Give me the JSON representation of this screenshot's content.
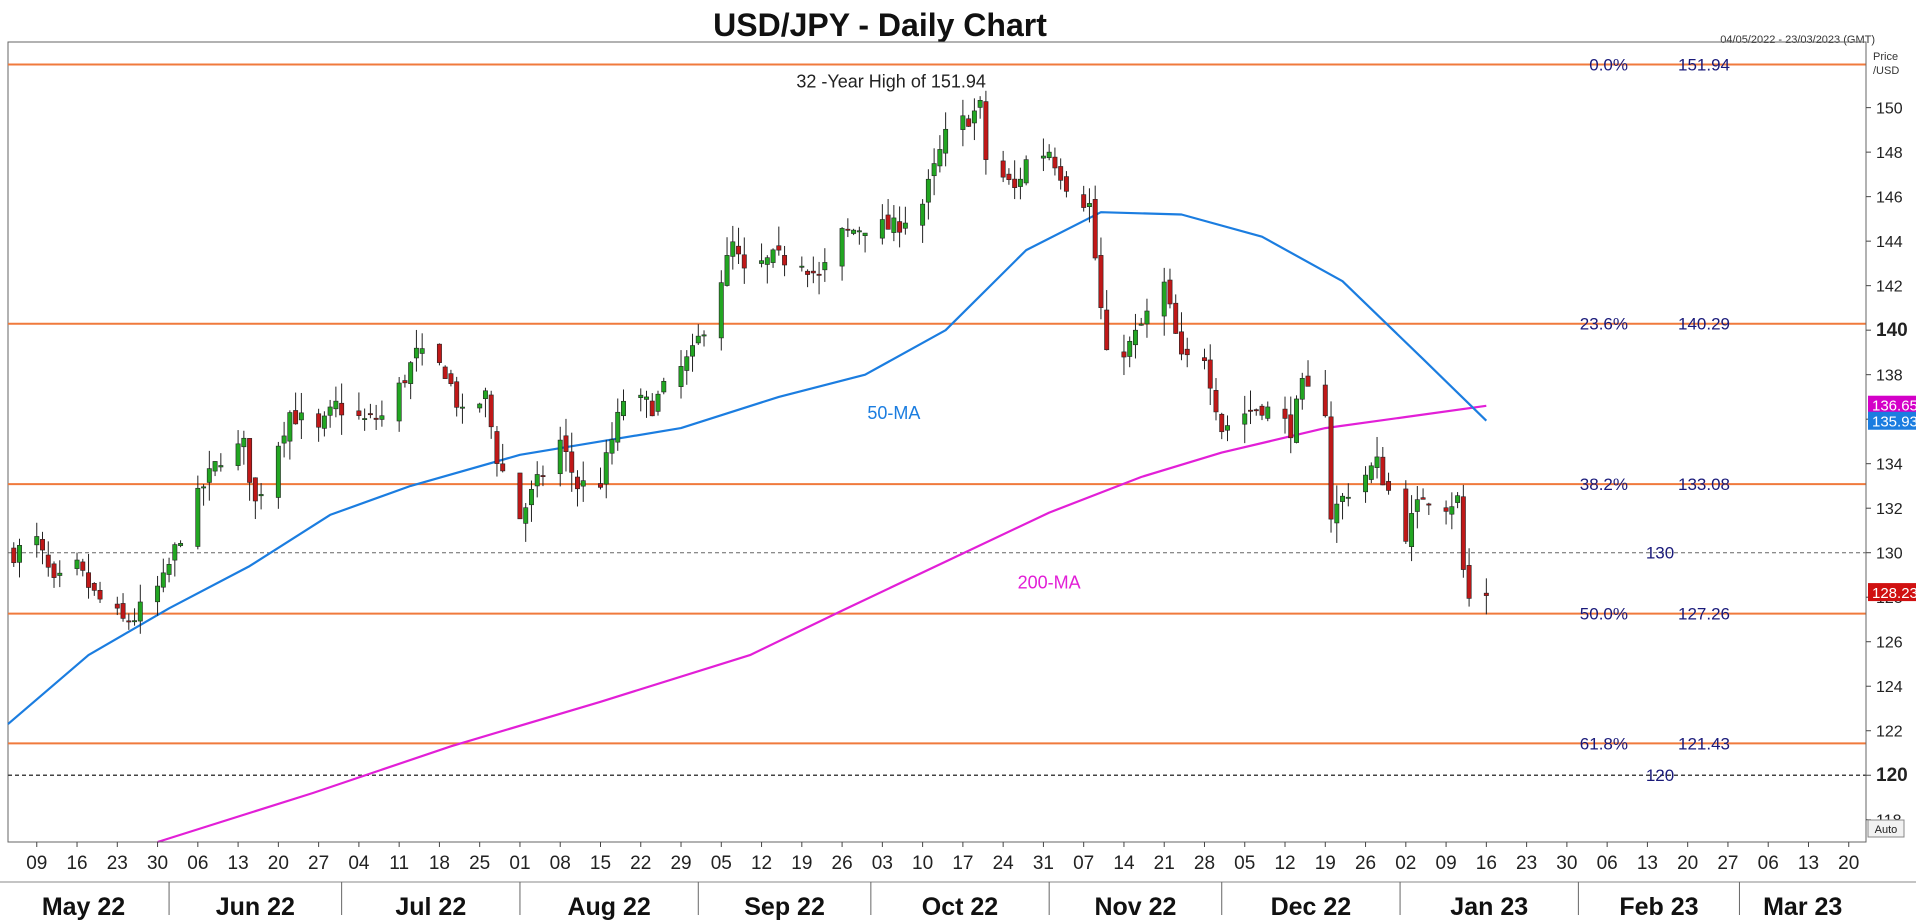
{
  "title": "USD/JPY - Daily Chart",
  "date_range": "04/05/2022 - 23/03/2023 (GMT)",
  "axis_header": [
    "Price",
    "/USD"
  ],
  "auto_label": "Auto",
  "chart_data": {
    "type": "candlestick",
    "y_axis": {
      "range": [
        117,
        152.5
      ],
      "ticks": [
        "118",
        "120",
        "122",
        "124",
        "126",
        "128",
        "130",
        "132",
        "134",
        "136",
        "138",
        "140",
        "142",
        "144",
        "146",
        "148",
        "150"
      ],
      "bold_ticks": [
        "120",
        "140"
      ],
      "grid": false
    },
    "x_axis": {
      "start": "2022-05-04",
      "end": "2023-03-23",
      "day_ticks": [
        {
          "date": "2022-05-09",
          "label": "09"
        },
        {
          "date": "2022-05-16",
          "label": "16"
        },
        {
          "date": "2022-05-23",
          "label": "23"
        },
        {
          "date": "2022-05-30",
          "label": "30"
        },
        {
          "date": "2022-06-06",
          "label": "06"
        },
        {
          "date": "2022-06-13",
          "label": "13"
        },
        {
          "date": "2022-06-20",
          "label": "20"
        },
        {
          "date": "2022-06-27",
          "label": "27"
        },
        {
          "date": "2022-07-04",
          "label": "04"
        },
        {
          "date": "2022-07-11",
          "label": "11"
        },
        {
          "date": "2022-07-18",
          "label": "18"
        },
        {
          "date": "2022-07-25",
          "label": "25"
        },
        {
          "date": "2022-08-01",
          "label": "01"
        },
        {
          "date": "2022-08-08",
          "label": "08"
        },
        {
          "date": "2022-08-15",
          "label": "15"
        },
        {
          "date": "2022-08-22",
          "label": "22"
        },
        {
          "date": "2022-08-29",
          "label": "29"
        },
        {
          "date": "2022-09-05",
          "label": "05"
        },
        {
          "date": "2022-09-12",
          "label": "12"
        },
        {
          "date": "2022-09-19",
          "label": "19"
        },
        {
          "date": "2022-09-26",
          "label": "26"
        },
        {
          "date": "2022-10-03",
          "label": "03"
        },
        {
          "date": "2022-10-10",
          "label": "10"
        },
        {
          "date": "2022-10-17",
          "label": "17"
        },
        {
          "date": "2022-10-24",
          "label": "24"
        },
        {
          "date": "2022-10-31",
          "label": "31"
        },
        {
          "date": "2022-11-07",
          "label": "07"
        },
        {
          "date": "2022-11-14",
          "label": "14"
        },
        {
          "date": "2022-11-21",
          "label": "21"
        },
        {
          "date": "2022-11-28",
          "label": "28"
        },
        {
          "date": "2022-12-05",
          "label": "05"
        },
        {
          "date": "2022-12-12",
          "label": "12"
        },
        {
          "date": "2022-12-19",
          "label": "19"
        },
        {
          "date": "2022-12-26",
          "label": "26"
        },
        {
          "date": "2023-01-02",
          "label": "02"
        },
        {
          "date": "2023-01-09",
          "label": "09"
        },
        {
          "date": "2023-01-16",
          "label": "16"
        },
        {
          "date": "2023-01-23",
          "label": "23"
        },
        {
          "date": "2023-01-30",
          "label": "30"
        },
        {
          "date": "2023-02-06",
          "label": "06"
        },
        {
          "date": "2023-02-13",
          "label": "13"
        },
        {
          "date": "2023-02-20",
          "label": "20"
        },
        {
          "date": "2023-02-27",
          "label": "27"
        },
        {
          "date": "2023-03-06",
          "label": "06"
        },
        {
          "date": "2023-03-13",
          "label": "13"
        },
        {
          "date": "2023-03-20",
          "label": "20"
        }
      ],
      "months": [
        {
          "label": "May 22",
          "start": "2022-05-04",
          "end": "2022-06-01"
        },
        {
          "label": "Jun 22",
          "start": "2022-06-01",
          "end": "2022-07-01"
        },
        {
          "label": "Jul 22",
          "start": "2022-07-01",
          "end": "2022-08-01"
        },
        {
          "label": "Aug 22",
          "start": "2022-08-01",
          "end": "2022-09-01"
        },
        {
          "label": "Sep 22",
          "start": "2022-09-01",
          "end": "2022-10-01"
        },
        {
          "label": "Oct 22",
          "start": "2022-10-01",
          "end": "2022-11-01"
        },
        {
          "label": "Nov 22",
          "start": "2022-11-01",
          "end": "2022-12-01"
        },
        {
          "label": "Dec 22",
          "start": "2022-12-01",
          "end": "2023-01-01"
        },
        {
          "label": "Jan 23",
          "start": "2023-01-01",
          "end": "2023-02-01"
        },
        {
          "label": "Feb 23",
          "start": "2023-02-01",
          "end": "2023-03-01"
        },
        {
          "label": "Mar 23",
          "start": "2023-03-01",
          "end": "2023-03-23"
        }
      ]
    },
    "price_path": [
      [
        "2022-05-05",
        130.0
      ],
      [
        "2022-05-09",
        130.5
      ],
      [
        "2022-05-12",
        128.5
      ],
      [
        "2022-05-16",
        129.3
      ],
      [
        "2022-05-19",
        128.1
      ],
      [
        "2022-05-24",
        126.9
      ],
      [
        "2022-05-26",
        127.1
      ],
      [
        "2022-05-31",
        128.7
      ],
      [
        "2022-06-03",
        130.8
      ],
      [
        "2022-06-07",
        133.0
      ],
      [
        "2022-06-10",
        134.3
      ],
      [
        "2022-06-14",
        134.8
      ],
      [
        "2022-06-16",
        132.2
      ],
      [
        "2022-06-20",
        135.0
      ],
      [
        "2022-06-22",
        136.3
      ],
      [
        "2022-06-27",
        135.4
      ],
      [
        "2022-06-30",
        136.6
      ],
      [
        "2022-07-05",
        135.9
      ],
      [
        "2022-07-08",
        136.1
      ],
      [
        "2022-07-11",
        137.4
      ],
      [
        "2022-07-14",
        138.9
      ],
      [
        "2022-07-19",
        138.2
      ],
      [
        "2022-07-22",
        136.1
      ],
      [
        "2022-07-26",
        137.0
      ],
      [
        "2022-07-28",
        134.3
      ],
      [
        "2022-08-01",
        131.6
      ],
      [
        "2022-08-04",
        133.1
      ],
      [
        "2022-08-08",
        135.0
      ],
      [
        "2022-08-11",
        133.0
      ],
      [
        "2022-08-15",
        133.2
      ],
      [
        "2022-08-19",
        136.9
      ],
      [
        "2022-08-24",
        136.6
      ],
      [
        "2022-08-26",
        137.3
      ],
      [
        "2022-08-31",
        138.9
      ],
      [
        "2022-09-02",
        140.2
      ],
      [
        "2022-09-07",
        143.8
      ],
      [
        "2022-09-09",
        142.5
      ],
      [
        "2022-09-14",
        143.2
      ],
      [
        "2022-09-19",
        143.2
      ],
      [
        "2022-09-22",
        142.3
      ],
      [
        "2022-09-26",
        144.3
      ],
      [
        "2022-09-30",
        144.7
      ],
      [
        "2022-10-05",
        144.6
      ],
      [
        "2022-10-10",
        145.7
      ],
      [
        "2022-10-14",
        148.7
      ],
      [
        "2022-10-20",
        150.0
      ],
      [
        "2022-10-21",
        147.7
      ],
      [
        "2022-10-26",
        146.3
      ],
      [
        "2022-10-28",
        147.6
      ],
      [
        "2022-11-01",
        148.1
      ],
      [
        "2022-11-04",
        146.6
      ],
      [
        "2022-11-08",
        145.6
      ],
      [
        "2022-11-10",
        140.9
      ],
      [
        "2022-11-11",
        138.7
      ],
      [
        "2022-11-15",
        139.3
      ],
      [
        "2022-11-21",
        142.0
      ],
      [
        "2022-11-24",
        138.6
      ],
      [
        "2022-11-28",
        138.9
      ],
      [
        "2022-12-01",
        135.6
      ],
      [
        "2022-12-05",
        136.3
      ],
      [
        "2022-12-08",
        136.6
      ],
      [
        "2022-12-13",
        135.6
      ],
      [
        "2022-12-15",
        137.4
      ],
      [
        "2022-12-19",
        136.5
      ],
      [
        "2022-12-20",
        131.7
      ],
      [
        "2022-12-23",
        132.8
      ],
      [
        "2022-12-28",
        134.0
      ],
      [
        "2023-01-02",
        130.9
      ],
      [
        "2023-01-05",
        132.6
      ],
      [
        "2023-01-09",
        132.2
      ],
      [
        "2023-01-11",
        132.4
      ],
      [
        "2023-01-12",
        129.2
      ],
      [
        "2023-01-13",
        127.9
      ],
      [
        "2023-01-16",
        128.2
      ]
    ],
    "sma50": [
      [
        "2022-05-04",
        122.3
      ],
      [
        "2022-05-18",
        125.4
      ],
      [
        "2022-06-01",
        127.5
      ],
      [
        "2022-06-15",
        129.4
      ],
      [
        "2022-06-29",
        131.7
      ],
      [
        "2022-07-13",
        133.0
      ],
      [
        "2022-08-01",
        134.4
      ],
      [
        "2022-08-15",
        135.0
      ],
      [
        "2022-08-29",
        135.6
      ],
      [
        "2022-09-15",
        137.0
      ],
      [
        "2022-09-30",
        138.0
      ],
      [
        "2022-10-14",
        140.0
      ],
      [
        "2022-10-28",
        143.6
      ],
      [
        "2022-11-10",
        145.3
      ],
      [
        "2022-11-24",
        145.2
      ],
      [
        "2022-12-08",
        144.2
      ],
      [
        "2022-12-22",
        142.2
      ],
      [
        "2023-01-05",
        138.7
      ],
      [
        "2023-01-16",
        135.93
      ]
    ],
    "sma200": [
      [
        "2022-05-30",
        117.0
      ],
      [
        "2022-06-26",
        119.2
      ],
      [
        "2022-07-20",
        121.3
      ],
      [
        "2022-08-15",
        123.3
      ],
      [
        "2022-09-10",
        125.4
      ],
      [
        "2022-09-26",
        127.4
      ],
      [
        "2022-10-14",
        129.6
      ],
      [
        "2022-11-01",
        131.8
      ],
      [
        "2022-11-17",
        133.4
      ],
      [
        "2022-12-01",
        134.5
      ],
      [
        "2022-12-19",
        135.6
      ],
      [
        "2023-01-02",
        136.1
      ],
      [
        "2023-01-16",
        136.6
      ]
    ],
    "fib_levels": [
      {
        "pct": "0.0%",
        "value": 151.94,
        "value_label": "151.94"
      },
      {
        "pct": "23.6%",
        "value": 140.29,
        "value_label": "140.29"
      },
      {
        "pct": "38.2%",
        "value": 133.08,
        "value_label": "133.08"
      },
      {
        "pct": "50.0%",
        "value": 127.26,
        "value_label": "127.26"
      },
      {
        "pct": "61.8%",
        "value": 121.43,
        "value_label": "121.43"
      }
    ],
    "dashed_levels": [
      {
        "value": 130,
        "label": "130"
      },
      {
        "value": 120,
        "label": "120"
      }
    ],
    "annotations": [
      {
        "text": "32 -Year High of 151.94",
        "x": "2022-10-21",
        "y": 151.94
      },
      {
        "text": "50-MA",
        "x": "2022-10-05",
        "y": 136.0
      },
      {
        "text": "200-MA",
        "x": "2022-11-01",
        "y": 128.4
      }
    ],
    "price_tags": [
      {
        "value": 136.65,
        "label": "136.65",
        "color": "#d400c8"
      },
      {
        "value": 135.93,
        "label": "135.93",
        "color": "#1b7de0"
      },
      {
        "value": 128.23,
        "label": "128.23",
        "color": "#d01010"
      }
    ],
    "colors": {
      "up": "#22a622",
      "down": "#c01818",
      "fib": "#f07a3c",
      "sma50": "#1b7de0",
      "sma200": "#e21fd7",
      "text": "#1a1a7a"
    }
  }
}
